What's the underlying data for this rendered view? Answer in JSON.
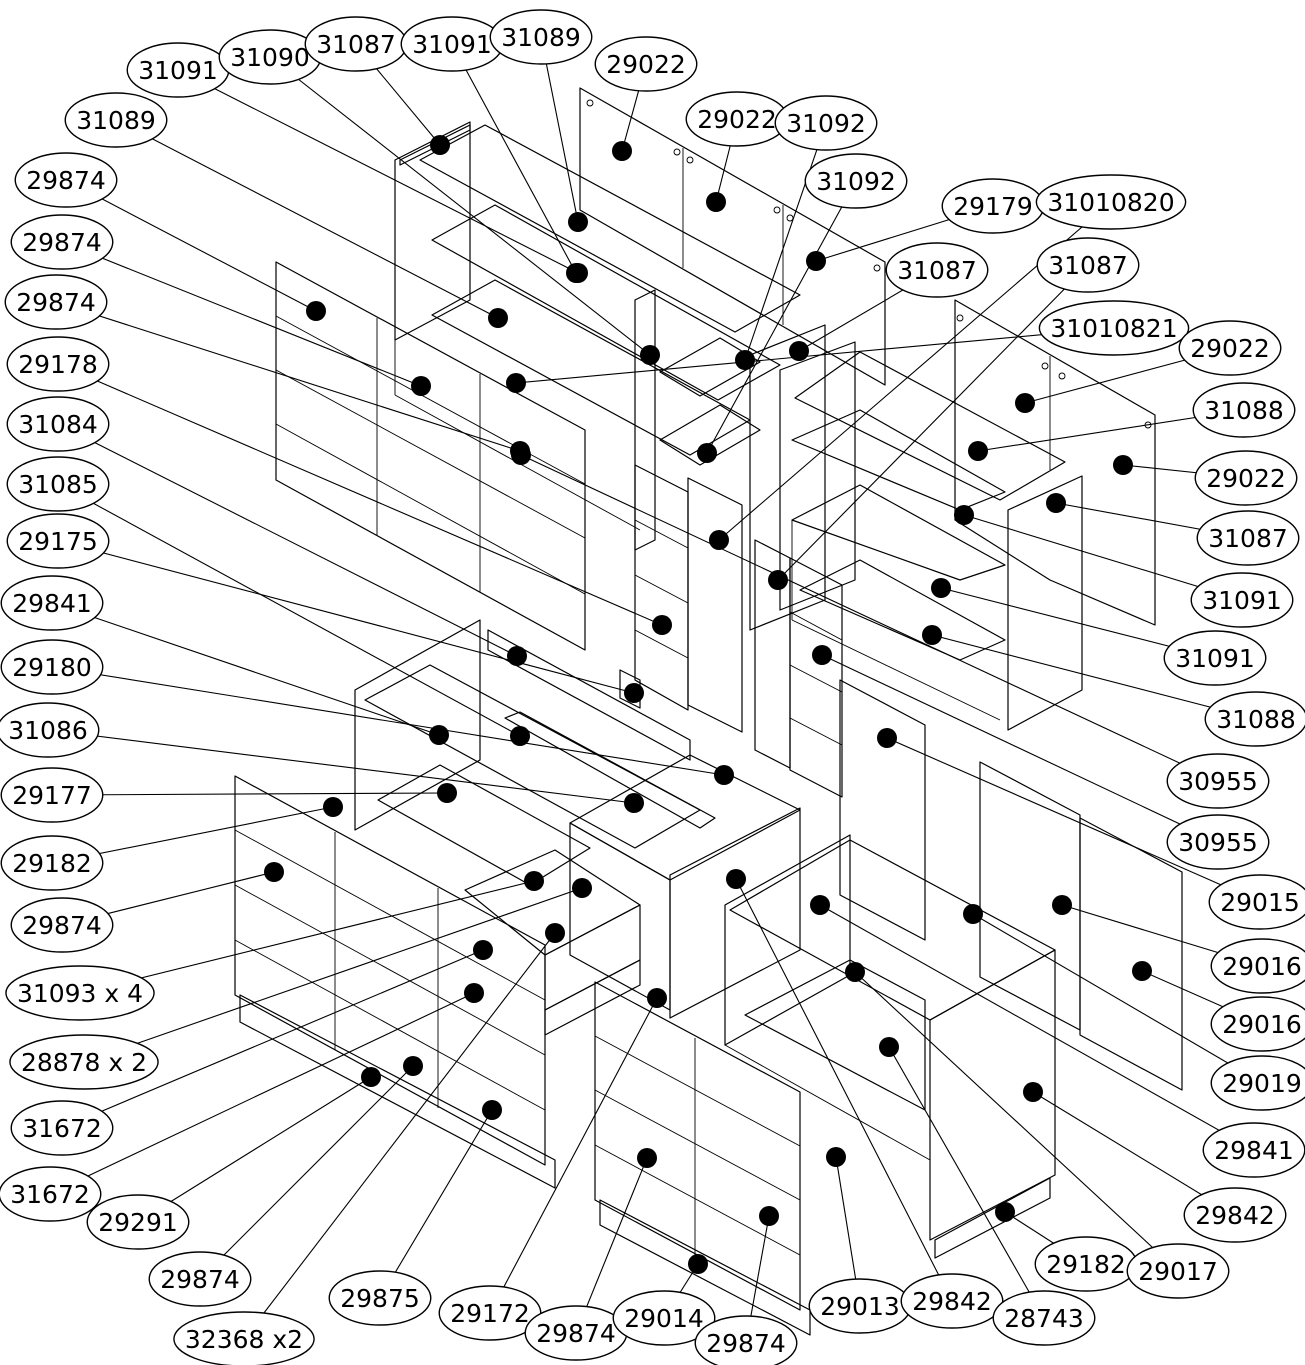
{
  "callouts": [
    {
      "text": "31091",
      "target": "f_shelf_top"
    },
    {
      "text": "31090",
      "target": "f_shelf_mid"
    },
    {
      "text": "31087",
      "target": "f_top"
    },
    {
      "text": "31091",
      "target": "f_back_a"
    },
    {
      "text": "31089",
      "target": "f_back_b"
    },
    {
      "text": "29022",
      "target": "f_panel_a"
    },
    {
      "text": "29022",
      "target": "f_panel_b"
    },
    {
      "text": "31092",
      "target": "m_shelf_a"
    },
    {
      "text": "31092",
      "target": "m_shelf_b"
    },
    {
      "text": "29179",
      "target": "f_side_r"
    },
    {
      "text": "31010820",
      "target": "m_door_a"
    },
    {
      "text": "31087",
      "target": "r_top_l"
    },
    {
      "text": "31087",
      "target": "m_div"
    },
    {
      "text": "31010821",
      "target": "m_slim"
    },
    {
      "text": "31089",
      "target": "f_shelf_low"
    },
    {
      "text": "29874",
      "target": "front_a1"
    },
    {
      "text": "29874",
      "target": "front_a2"
    },
    {
      "text": "29874",
      "target": "front_a3"
    },
    {
      "text": "29178",
      "target": "m_low_a"
    },
    {
      "text": "31084",
      "target": "m_low_b"
    },
    {
      "text": "31085",
      "target": "b_top_back"
    },
    {
      "text": "29175",
      "target": "b_rail"
    },
    {
      "text": "29841",
      "target": "b_inner"
    },
    {
      "text": "29180",
      "target": "b_shelf"
    },
    {
      "text": "31086",
      "target": "b_div"
    },
    {
      "text": "29177",
      "target": "b_shelf_lo"
    },
    {
      "text": "29182",
      "target": "b_side"
    },
    {
      "text": "29874",
      "target": "b_front_1"
    },
    {
      "text": "31093 x 4",
      "target": "b_drawer_1"
    },
    {
      "text": "28878 x 2",
      "target": "b_drawer_2"
    },
    {
      "text": "31672",
      "target": "b_front_2"
    },
    {
      "text": "31672",
      "target": "b_front_3"
    },
    {
      "text": "29291",
      "target": "b_plinth"
    },
    {
      "text": "29874",
      "target": "b_front_4"
    },
    {
      "text": "32368 x2",
      "target": "b_drawer_3"
    },
    {
      "text": "29875",
      "target": "b_front_5"
    },
    {
      "text": "29172",
      "target": "c_front_top"
    },
    {
      "text": "29874",
      "target": "c_front_1"
    },
    {
      "text": "29014",
      "target": "c_plinth"
    },
    {
      "text": "29874",
      "target": "c_front_2"
    },
    {
      "text": "29013",
      "target": "d_base"
    },
    {
      "text": "29842",
      "target": "c_side"
    },
    {
      "text": "28743",
      "target": "d_shelf"
    },
    {
      "text": "29182",
      "target": "d_plinth"
    },
    {
      "text": "29017",
      "target": "d_div"
    },
    {
      "text": "29842",
      "target": "d_side"
    },
    {
      "text": "29841",
      "target": "d_inner"
    },
    {
      "text": "29019",
      "target": "d_back"
    },
    {
      "text": "29016",
      "target": "e_door_b"
    },
    {
      "text": "29016",
      "target": "e_door_a"
    },
    {
      "text": "29015",
      "target": "d_top"
    },
    {
      "text": "30955",
      "target": "m_door_c"
    },
    {
      "text": "30955",
      "target": "m_low_c"
    },
    {
      "text": "31088",
      "target": "r_shelf_c"
    },
    {
      "text": "31091",
      "target": "r_shelf_b"
    },
    {
      "text": "31091",
      "target": "r_shelf_a"
    },
    {
      "text": "31087",
      "target": "r_side"
    },
    {
      "text": "29022",
      "target": "r_back_b"
    },
    {
      "text": "31088",
      "target": "r_top"
    },
    {
      "text": "29022",
      "target": "r_back_a"
    }
  ]
}
